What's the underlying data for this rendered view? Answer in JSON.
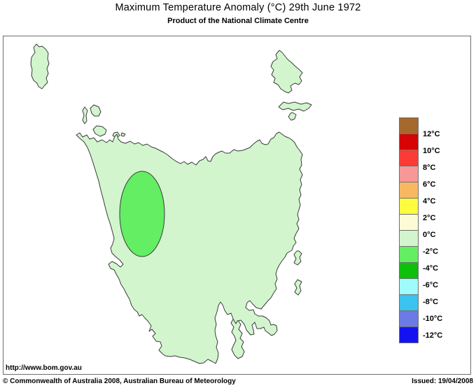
{
  "header": {
    "title": "Maximum Temperature Anomaly (°C)  29th June 1972",
    "subtitle": "Product of the National Climate Centre"
  },
  "map": {
    "land_color": "#d2f5cd",
    "outline_color": "#3c3c3c",
    "anomaly_ellipse": {
      "color": "#63ee63"
    }
  },
  "legend": {
    "colors": [
      "#a5682d",
      "#d60404",
      "#fb3b36",
      "#f79797",
      "#f8b862",
      "#fdfd3e",
      "#fbfbd4",
      "#d2f5cd",
      "#63ee63",
      "#0cc00c",
      "#9ffcfc",
      "#3ac3ef",
      "#6c7ae6",
      "#1313f2"
    ],
    "labels": [
      "12°C",
      "10°C",
      "8°C",
      "6°C",
      "4°C",
      "2°C",
      "0°C",
      "-2°C",
      "-4°C",
      "-6°C",
      "-8°C",
      "-10°C",
      "-12°C"
    ]
  },
  "footer": {
    "url": "http://www.bom.gov.au",
    "copyright": "© Commonwealth of Australia 2008, Australian Bureau of Meteorology",
    "issued": "Issued: 19/04/2008"
  }
}
